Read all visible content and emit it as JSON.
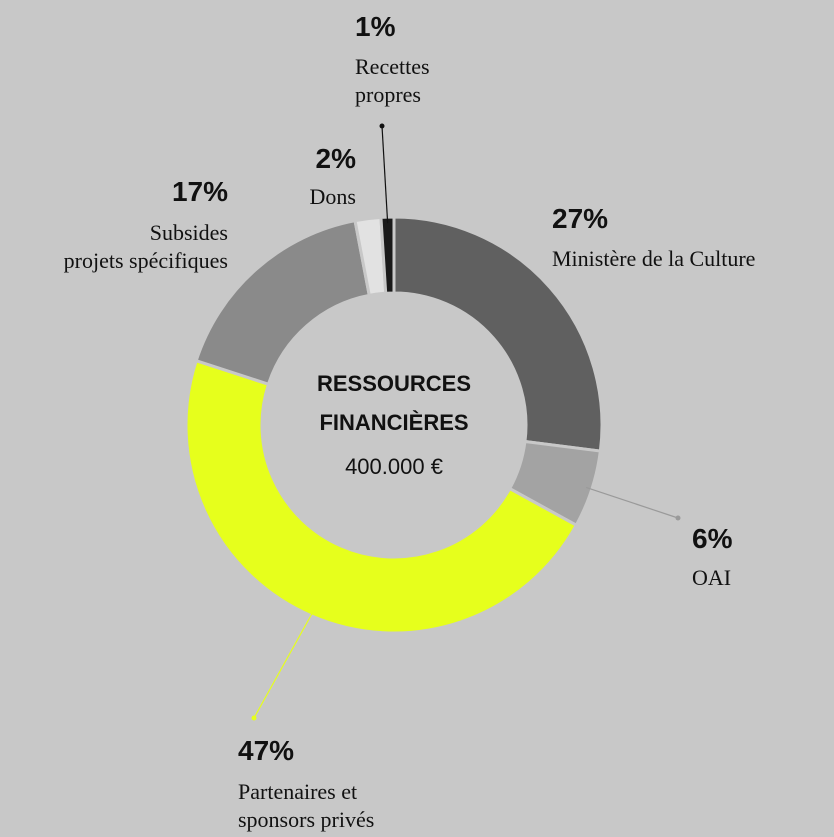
{
  "chart_data": {
    "type": "pie",
    "donut": true,
    "center_title_lines": [
      "RESSOURCES",
      "FINANCIÈRES"
    ],
    "center_value": "400.000 €",
    "slices": [
      {
        "pct_label": "27%",
        "value": 27,
        "label_lines": [
          "Ministère de la Culture"
        ],
        "color": "#606060"
      },
      {
        "pct_label": "6%",
        "value": 6,
        "label_lines": [
          "OAI"
        ],
        "color": "#a3a3a3"
      },
      {
        "pct_label": "47%",
        "value": 47,
        "label_lines": [
          "Partenaires et",
          "sponsors privés"
        ],
        "color": "#e6ff1c"
      },
      {
        "pct_label": "17%",
        "value": 17,
        "label_lines": [
          "Subsides",
          "projets spécifiques"
        ],
        "color": "#8a8a8a"
      },
      {
        "pct_label": "2%",
        "value": 2,
        "label_lines": [
          "Dons"
        ],
        "color": "#e2e2e2"
      },
      {
        "pct_label": "1%",
        "value": 1,
        "label_lines": [
          "Recettes",
          "propres"
        ],
        "color": "#1a1a1a"
      }
    ]
  }
}
